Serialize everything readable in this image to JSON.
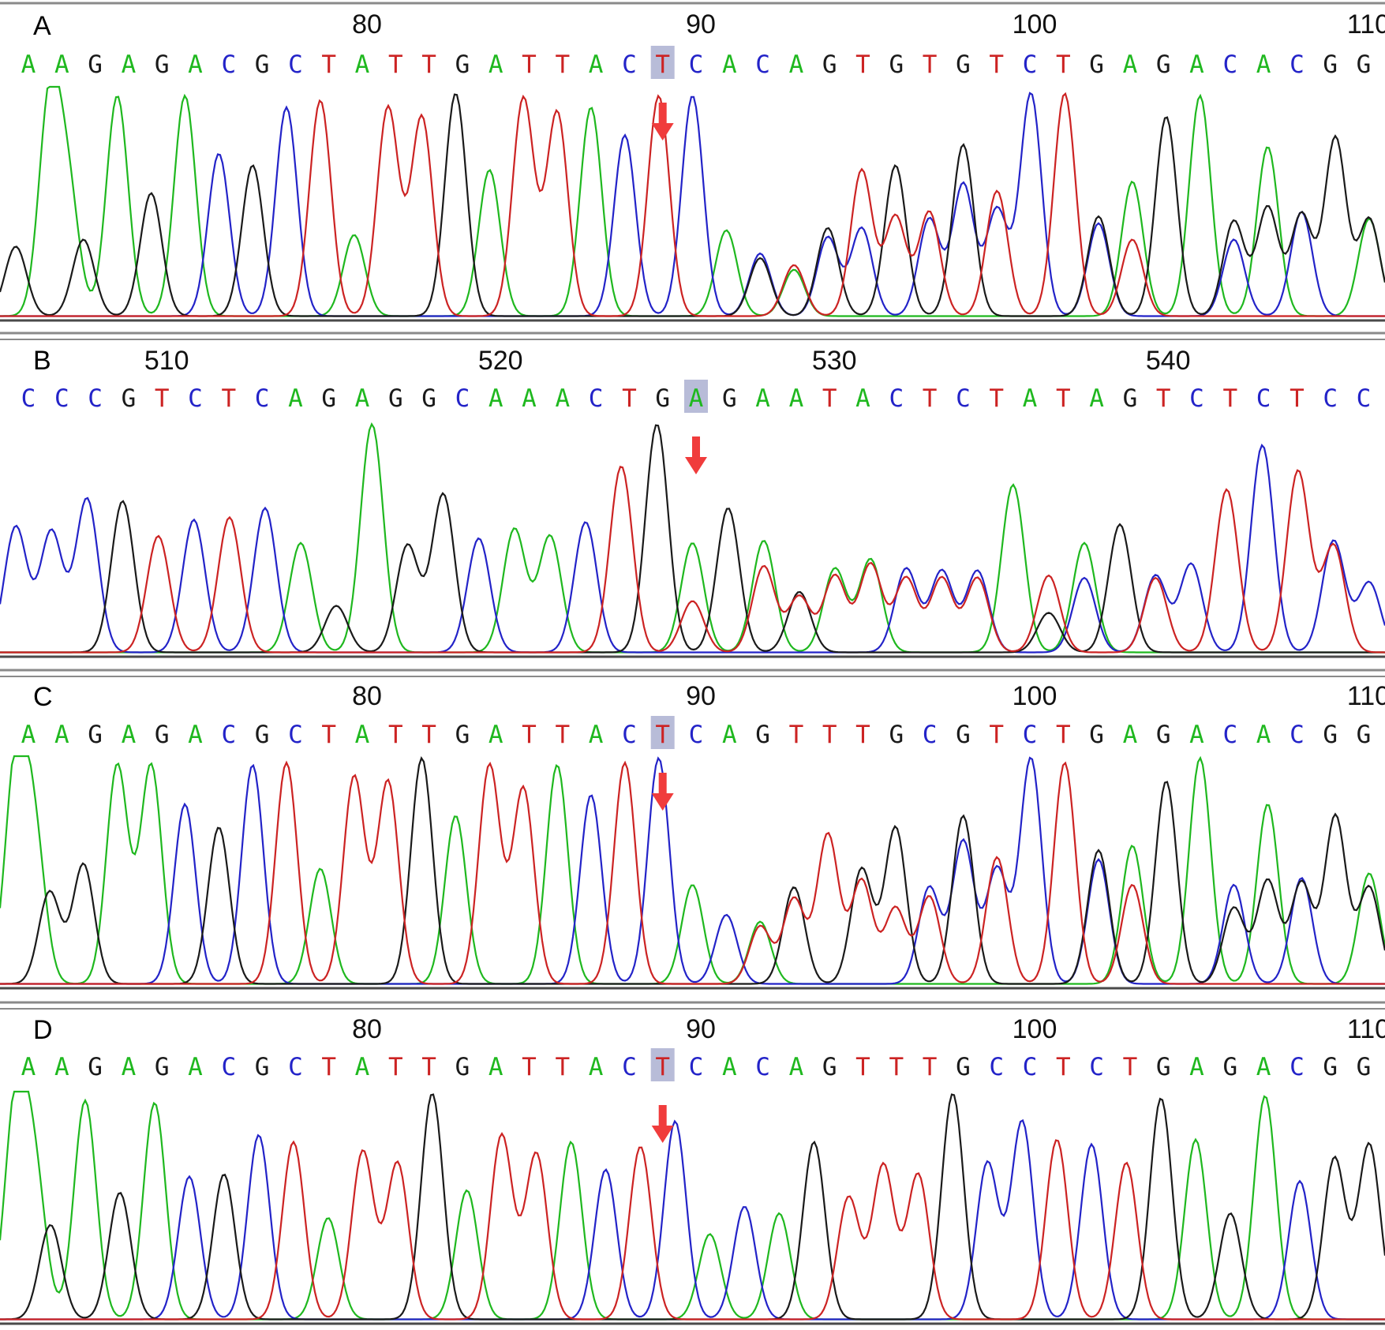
{
  "colors": {
    "A": "#1fb81f",
    "C": "#2323c8",
    "G": "#1a1a1a",
    "T": "#cc2323",
    "highlight": "#b8bcd8",
    "arrow": "#f03c3c",
    "rule": "#8a8a8a"
  },
  "chart_data": [
    {
      "type": "line",
      "panel": "A",
      "tick_labels": [
        {
          "value": 80,
          "index": 11
        },
        {
          "value": 90,
          "index": 21
        },
        {
          "value": 100,
          "index": 31
        },
        {
          "value": 110,
          "index": 41
        }
      ],
      "sequence": "AAGAGACGCTATTGATTACTCACAGTGTGTCTGAGACACGG",
      "highlight_index": 19,
      "arrow_index": 19,
      "trace": [
        {
          "x": 0,
          "main": "G",
          "h": 0.3
        },
        {
          "x": 1,
          "main": "A",
          "h": 0.92,
          "second": "A",
          "sh": 0.52
        },
        {
          "x": 2,
          "main": "G",
          "h": 0.33
        },
        {
          "x": 3,
          "main": "A",
          "h": 0.95
        },
        {
          "x": 4,
          "main": "G",
          "h": 0.53
        },
        {
          "x": 5,
          "main": "A",
          "h": 0.95
        },
        {
          "x": 6,
          "main": "C",
          "h": 0.7
        },
        {
          "x": 7,
          "main": "G",
          "h": 0.65
        },
        {
          "x": 8,
          "main": "C",
          "h": 0.9
        },
        {
          "x": 9,
          "main": "T",
          "h": 0.93
        },
        {
          "x": 10,
          "main": "A",
          "h": 0.35
        },
        {
          "x": 11,
          "main": "T",
          "h": 0.9
        },
        {
          "x": 12,
          "main": "T",
          "h": 0.86
        },
        {
          "x": 13,
          "main": "G",
          "h": 0.96
        },
        {
          "x": 14,
          "main": "A",
          "h": 0.63
        },
        {
          "x": 15,
          "main": "T",
          "h": 0.94
        },
        {
          "x": 16,
          "main": "T",
          "h": 0.88
        },
        {
          "x": 17,
          "main": "A",
          "h": 0.9
        },
        {
          "x": 18,
          "main": "C",
          "h": 0.78
        },
        {
          "x": 19,
          "main": "T",
          "h": 0.95
        },
        {
          "x": 20,
          "main": "C",
          "h": 0.95
        },
        {
          "x": 21,
          "main": "A",
          "h": 0.37
        },
        {
          "x": 22,
          "main": "C",
          "h": 0.27,
          "second": "G",
          "sh": 0.25
        },
        {
          "x": 23,
          "main": "A",
          "h": 0.2,
          "second": "T",
          "sh": 0.22
        },
        {
          "x": 24,
          "main": "G",
          "h": 0.38,
          "second": "C",
          "sh": 0.34
        },
        {
          "x": 25,
          "main": "T",
          "h": 0.63,
          "second": "C",
          "sh": 0.38
        },
        {
          "x": 26,
          "main": "G",
          "h": 0.65,
          "second": "T",
          "sh": 0.43
        },
        {
          "x": 27,
          "main": "T",
          "h": 0.45,
          "second": "C",
          "sh": 0.42
        },
        {
          "x": 28,
          "main": "G",
          "h": 0.74,
          "second": "C",
          "sh": 0.57
        },
        {
          "x": 29,
          "main": "T",
          "h": 0.54,
          "second": "C",
          "sh": 0.46
        },
        {
          "x": 30,
          "main": "C",
          "h": 0.96
        },
        {
          "x": 31,
          "main": "T",
          "h": 0.96
        },
        {
          "x": 32,
          "main": "G",
          "h": 0.43,
          "second": "C",
          "sh": 0.4
        },
        {
          "x": 33,
          "main": "A",
          "h": 0.58,
          "second": "T",
          "sh": 0.33
        },
        {
          "x": 34,
          "main": "G",
          "h": 0.86
        },
        {
          "x": 35,
          "main": "A",
          "h": 0.95
        },
        {
          "x": 36,
          "main": "C",
          "h": 0.33,
          "second": "G",
          "sh": 0.41
        },
        {
          "x": 37,
          "main": "A",
          "h": 0.73,
          "second": "G",
          "sh": 0.47
        },
        {
          "x": 38,
          "main": "C",
          "h": 0.45,
          "second": "G",
          "sh": 0.44
        },
        {
          "x": 39,
          "main": "G",
          "h": 0.77
        },
        {
          "x": 40,
          "main": "G",
          "h": 0.42,
          "second": "A",
          "sh": 0.42
        }
      ]
    },
    {
      "type": "line",
      "panel": "B",
      "tick_labels": [
        {
          "value": 510,
          "index": 5
        },
        {
          "value": 520,
          "index": 15
        },
        {
          "value": 530,
          "index": 25
        },
        {
          "value": 540,
          "index": 35
        }
      ],
      "sequence": "CCCGTCTCAGAGGCAAACTGAGAATACTCTATAGTCTCTCC",
      "highlight_index": 20,
      "arrow_index": 20,
      "trace": [
        {
          "x": 0,
          "main": "C",
          "h": 0.54
        },
        {
          "x": 1,
          "main": "C",
          "h": 0.52
        },
        {
          "x": 2,
          "main": "C",
          "h": 0.66
        },
        {
          "x": 3,
          "main": "G",
          "h": 0.65
        },
        {
          "x": 4,
          "main": "T",
          "h": 0.5
        },
        {
          "x": 5,
          "main": "C",
          "h": 0.57
        },
        {
          "x": 6,
          "main": "T",
          "h": 0.58
        },
        {
          "x": 7,
          "main": "C",
          "h": 0.62
        },
        {
          "x": 8,
          "main": "A",
          "h": 0.47
        },
        {
          "x": 9,
          "main": "G",
          "h": 0.2
        },
        {
          "x": 10,
          "main": "A",
          "h": 0.98
        },
        {
          "x": 11,
          "main": "G",
          "h": 0.46
        },
        {
          "x": 12,
          "main": "G",
          "h": 0.68
        },
        {
          "x": 13,
          "main": "C",
          "h": 0.49
        },
        {
          "x": 14,
          "main": "A",
          "h": 0.53
        },
        {
          "x": 15,
          "main": "A",
          "h": 0.5
        },
        {
          "x": 16,
          "main": "C",
          "h": 0.56
        },
        {
          "x": 17,
          "main": "T",
          "h": 0.8
        },
        {
          "x": 18,
          "main": "G",
          "h": 0.98
        },
        {
          "x": 19,
          "main": "A",
          "h": 0.47,
          "second": "T",
          "sh": 0.22
        },
        {
          "x": 20,
          "main": "G",
          "h": 0.62
        },
        {
          "x": 21,
          "main": "A",
          "h": 0.48,
          "second": "T",
          "sh": 0.37
        },
        {
          "x": 22,
          "main": "G",
          "h": 0.26,
          "second": "T",
          "sh": 0.24
        },
        {
          "x": 23,
          "main": "A",
          "h": 0.36,
          "second": "T",
          "sh": 0.33
        },
        {
          "x": 24,
          "main": "A",
          "h": 0.4,
          "second": "T",
          "sh": 0.38
        },
        {
          "x": 25,
          "main": "C",
          "h": 0.36,
          "second": "T",
          "sh": 0.32
        },
        {
          "x": 26,
          "main": "C",
          "h": 0.35,
          "second": "T",
          "sh": 0.32
        },
        {
          "x": 27,
          "main": "C",
          "h": 0.35,
          "second": "T",
          "sh": 0.32
        },
        {
          "x": 28,
          "main": "A",
          "h": 0.72
        },
        {
          "x": 29,
          "main": "T",
          "h": 0.33,
          "second": "G",
          "sh": 0.17
        },
        {
          "x": 30,
          "main": "A",
          "h": 0.47,
          "second": "C",
          "sh": 0.32
        },
        {
          "x": 31,
          "main": "G",
          "h": 0.55
        },
        {
          "x": 32,
          "main": "C",
          "h": 0.33,
          "second": "T",
          "sh": 0.32
        },
        {
          "x": 33,
          "main": "C",
          "h": 0.38
        },
        {
          "x": 34,
          "main": "T",
          "h": 0.7
        },
        {
          "x": 35,
          "main": "C",
          "h": 0.89
        },
        {
          "x": 36,
          "main": "T",
          "h": 0.78
        },
        {
          "x": 37,
          "main": "C",
          "h": 0.48,
          "second": "T",
          "sh": 0.46
        },
        {
          "x": 38,
          "main": "C",
          "h": 0.3
        }
      ]
    },
    {
      "type": "line",
      "panel": "C",
      "tick_labels": [
        {
          "value": 80,
          "index": 11
        },
        {
          "value": 90,
          "index": 21
        },
        {
          "value": 100,
          "index": 31
        },
        {
          "value": 110,
          "index": 41
        }
      ],
      "sequence": "AAGAGACGCTATTGATTACTCAGTTTGCGTCTGAGACACGG",
      "highlight_index": 19,
      "arrow_index": 19,
      "trace": [
        {
          "x": 0,
          "main": "A",
          "h": 0.94,
          "second": "A",
          "sh": 0.62
        },
        {
          "x": 1,
          "main": "G",
          "h": 0.4
        },
        {
          "x": 2,
          "main": "G",
          "h": 0.52
        },
        {
          "x": 3,
          "main": "A",
          "h": 0.95
        },
        {
          "x": 4,
          "main": "A",
          "h": 0.95
        },
        {
          "x": 5,
          "main": "C",
          "h": 0.78
        },
        {
          "x": 6,
          "main": "G",
          "h": 0.68
        },
        {
          "x": 7,
          "main": "C",
          "h": 0.95
        },
        {
          "x": 8,
          "main": "T",
          "h": 0.96
        },
        {
          "x": 9,
          "main": "A",
          "h": 0.5
        },
        {
          "x": 10,
          "main": "T",
          "h": 0.9
        },
        {
          "x": 11,
          "main": "T",
          "h": 0.88
        },
        {
          "x": 12,
          "main": "G",
          "h": 0.98
        },
        {
          "x": 13,
          "main": "A",
          "h": 0.73
        },
        {
          "x": 14,
          "main": "T",
          "h": 0.95
        },
        {
          "x": 15,
          "main": "T",
          "h": 0.85
        },
        {
          "x": 16,
          "main": "A",
          "h": 0.95
        },
        {
          "x": 17,
          "main": "C",
          "h": 0.82
        },
        {
          "x": 18,
          "main": "T",
          "h": 0.96
        },
        {
          "x": 19,
          "main": "C",
          "h": 0.98
        },
        {
          "x": 20,
          "main": "A",
          "h": 0.43
        },
        {
          "x": 21,
          "main": "C",
          "h": 0.3
        },
        {
          "x": 22,
          "main": "A",
          "h": 0.27,
          "second": "T",
          "sh": 0.25
        },
        {
          "x": 23,
          "main": "G",
          "h": 0.42,
          "second": "T",
          "sh": 0.37
        },
        {
          "x": 24,
          "main": "T",
          "h": 0.65
        },
        {
          "x": 25,
          "main": "G",
          "h": 0.5,
          "second": "T",
          "sh": 0.45
        },
        {
          "x": 26,
          "main": "G",
          "h": 0.68,
          "second": "T",
          "sh": 0.33
        },
        {
          "x": 27,
          "main": "C",
          "h": 0.42,
          "second": "T",
          "sh": 0.38
        },
        {
          "x": 28,
          "main": "G",
          "h": 0.73,
          "second": "C",
          "sh": 0.62
        },
        {
          "x": 29,
          "main": "T",
          "h": 0.55,
          "second": "C",
          "sh": 0.5
        },
        {
          "x": 30,
          "main": "C",
          "h": 0.98
        },
        {
          "x": 31,
          "main": "T",
          "h": 0.96
        },
        {
          "x": 32,
          "main": "G",
          "h": 0.58,
          "second": "C",
          "sh": 0.54
        },
        {
          "x": 33,
          "main": "A",
          "h": 0.6,
          "second": "T",
          "sh": 0.43
        },
        {
          "x": 34,
          "main": "G",
          "h": 0.88
        },
        {
          "x": 35,
          "main": "A",
          "h": 0.98
        },
        {
          "x": 36,
          "main": "C",
          "h": 0.43,
          "second": "G",
          "sh": 0.33
        },
        {
          "x": 37,
          "main": "A",
          "h": 0.78,
          "second": "G",
          "sh": 0.45
        },
        {
          "x": 38,
          "main": "C",
          "h": 0.46,
          "second": "G",
          "sh": 0.44
        },
        {
          "x": 39,
          "main": "G",
          "h": 0.73
        },
        {
          "x": 40,
          "main": "A",
          "h": 0.48,
          "second": "G",
          "sh": 0.42
        }
      ]
    },
    {
      "type": "line",
      "panel": "D",
      "tick_labels": [
        {
          "value": 80,
          "index": 11
        },
        {
          "value": 90,
          "index": 21
        },
        {
          "value": 100,
          "index": 31
        },
        {
          "value": 110,
          "index": 41
        }
      ],
      "sequence": "AAGAGACGCTATTGATTACTCACAGTTTGCCTCTGAGACGG",
      "highlight_index": 19,
      "arrow_index": 19,
      "trace": [
        {
          "x": 0,
          "main": "A",
          "h": 0.93,
          "second": "A",
          "sh": 0.6
        },
        {
          "x": 1,
          "main": "G",
          "h": 0.41
        },
        {
          "x": 2,
          "main": "A",
          "h": 0.95
        },
        {
          "x": 3,
          "main": "G",
          "h": 0.55
        },
        {
          "x": 4,
          "main": "A",
          "h": 0.94
        },
        {
          "x": 5,
          "main": "C",
          "h": 0.62
        },
        {
          "x": 6,
          "main": "G",
          "h": 0.63
        },
        {
          "x": 7,
          "main": "C",
          "h": 0.8
        },
        {
          "x": 8,
          "main": "T",
          "h": 0.77
        },
        {
          "x": 9,
          "main": "A",
          "h": 0.44
        },
        {
          "x": 10,
          "main": "T",
          "h": 0.73
        },
        {
          "x": 11,
          "main": "T",
          "h": 0.68
        },
        {
          "x": 12,
          "main": "G",
          "h": 0.98
        },
        {
          "x": 13,
          "main": "A",
          "h": 0.56
        },
        {
          "x": 14,
          "main": "T",
          "h": 0.8
        },
        {
          "x": 15,
          "main": "T",
          "h": 0.72
        },
        {
          "x": 16,
          "main": "A",
          "h": 0.77
        },
        {
          "x": 17,
          "main": "C",
          "h": 0.65
        },
        {
          "x": 18,
          "main": "T",
          "h": 0.75
        },
        {
          "x": 19,
          "main": "C",
          "h": 0.86
        },
        {
          "x": 20,
          "main": "A",
          "h": 0.37
        },
        {
          "x": 21,
          "main": "C",
          "h": 0.49
        },
        {
          "x": 22,
          "main": "A",
          "h": 0.46
        },
        {
          "x": 23,
          "main": "G",
          "h": 0.77
        },
        {
          "x": 24,
          "main": "T",
          "h": 0.53
        },
        {
          "x": 25,
          "main": "T",
          "h": 0.67
        },
        {
          "x": 26,
          "main": "T",
          "h": 0.63
        },
        {
          "x": 27,
          "main": "G",
          "h": 0.98
        },
        {
          "x": 28,
          "main": "C",
          "h": 0.68
        },
        {
          "x": 29,
          "main": "C",
          "h": 0.86
        },
        {
          "x": 30,
          "main": "T",
          "h": 0.78
        },
        {
          "x": 31,
          "main": "C",
          "h": 0.76
        },
        {
          "x": 32,
          "main": "T",
          "h": 0.68
        },
        {
          "x": 33,
          "main": "G",
          "h": 0.96
        },
        {
          "x": 34,
          "main": "A",
          "h": 0.78
        },
        {
          "x": 35,
          "main": "G",
          "h": 0.46
        },
        {
          "x": 36,
          "main": "A",
          "h": 0.97
        },
        {
          "x": 37,
          "main": "C",
          "h": 0.6
        },
        {
          "x": 38,
          "main": "G",
          "h": 0.7
        },
        {
          "x": 39,
          "main": "G",
          "h": 0.76
        }
      ]
    }
  ]
}
